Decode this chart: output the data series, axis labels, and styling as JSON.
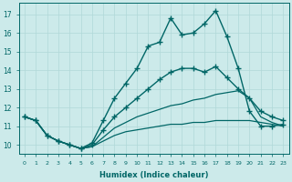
{
  "xlabel": "Humidex (Indice chaleur)",
  "bg_color": "#cceaea",
  "line_color": "#006666",
  "grid_color": "#aadddd",
  "ylim": [
    9.5,
    17.6
  ],
  "xlim": [
    -0.5,
    23.5
  ],
  "yticks": [
    10,
    11,
    12,
    13,
    14,
    15,
    16,
    17
  ],
  "xticks": [
    0,
    1,
    2,
    3,
    4,
    5,
    6,
    7,
    8,
    9,
    10,
    11,
    12,
    13,
    14,
    15,
    16,
    17,
    18,
    19,
    20,
    21,
    22,
    23
  ],
  "series": [
    {
      "x": [
        0,
        1,
        2,
        3,
        4,
        5,
        6,
        7,
        8,
        9,
        10,
        11,
        12,
        13,
        14,
        15,
        16,
        17,
        18,
        19,
        20,
        21,
        22,
        23
      ],
      "y": [
        11.5,
        11.3,
        10.5,
        10.2,
        10.0,
        9.8,
        10.1,
        11.3,
        12.5,
        13.3,
        14.1,
        15.3,
        15.5,
        16.8,
        15.9,
        16.0,
        16.5,
        17.2,
        15.8,
        14.1,
        11.8,
        11.0,
        11.0,
        11.1
      ],
      "marker": "+",
      "markersize": 4,
      "linewidth": 1.0
    },
    {
      "x": [
        0,
        1,
        2,
        3,
        4,
        5,
        6,
        7,
        8,
        9,
        10,
        11,
        12,
        13,
        14,
        15,
        16,
        17,
        18,
        19,
        20,
        21,
        22,
        23
      ],
      "y": [
        11.5,
        11.3,
        10.5,
        10.2,
        10.0,
        9.8,
        10.0,
        10.8,
        11.5,
        12.0,
        12.5,
        13.0,
        13.5,
        13.9,
        14.1,
        14.1,
        13.9,
        14.2,
        13.6,
        13.0,
        12.5,
        11.8,
        11.5,
        11.3
      ],
      "marker": "+",
      "markersize": 4,
      "linewidth": 1.0
    },
    {
      "x": [
        0,
        1,
        2,
        3,
        4,
        5,
        6,
        7,
        8,
        9,
        10,
        11,
        12,
        13,
        14,
        15,
        16,
        17,
        18,
        19,
        20,
        21,
        22,
        23
      ],
      "y": [
        11.5,
        11.3,
        10.5,
        10.2,
        10.0,
        9.8,
        9.9,
        10.4,
        10.9,
        11.2,
        11.5,
        11.7,
        11.9,
        12.1,
        12.2,
        12.4,
        12.5,
        12.7,
        12.8,
        12.9,
        12.5,
        11.5,
        11.2,
        11.0
      ],
      "marker": null,
      "markersize": 0,
      "linewidth": 0.9
    },
    {
      "x": [
        0,
        1,
        2,
        3,
        4,
        5,
        6,
        7,
        8,
        9,
        10,
        11,
        12,
        13,
        14,
        15,
        16,
        17,
        18,
        19,
        20,
        21,
        22,
        23
      ],
      "y": [
        11.5,
        11.3,
        10.5,
        10.2,
        10.0,
        9.8,
        9.9,
        10.2,
        10.5,
        10.7,
        10.8,
        10.9,
        11.0,
        11.1,
        11.1,
        11.2,
        11.2,
        11.3,
        11.3,
        11.3,
        11.3,
        11.2,
        11.1,
        11.0
      ],
      "marker": null,
      "markersize": 0,
      "linewidth": 0.9
    }
  ]
}
